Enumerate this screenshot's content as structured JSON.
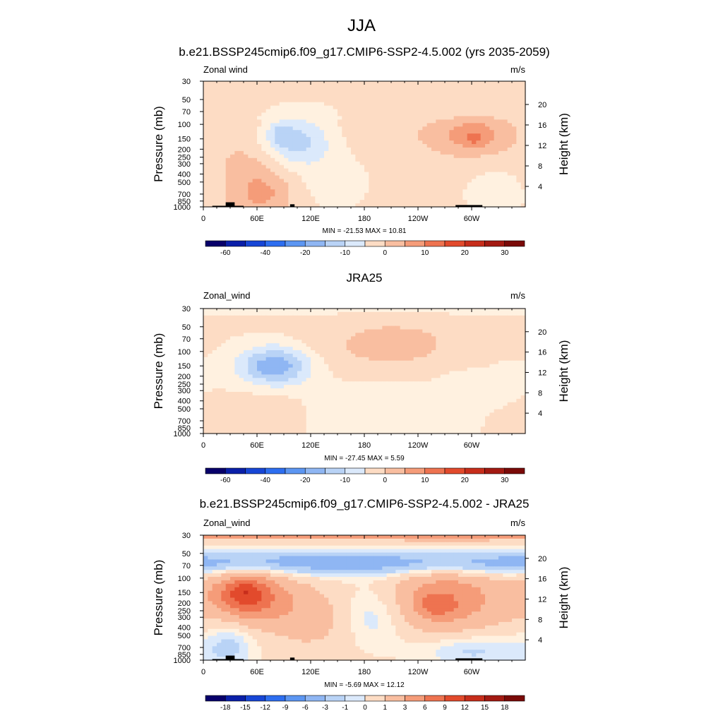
{
  "figure_title": "JJA",
  "colors": {
    "diverging_palette": [
      "#08006a",
      "#0a1fa8",
      "#1746d6",
      "#2d6ef0",
      "#5c96f2",
      "#8fb6f3",
      "#b9d3f6",
      "#dbe9fb",
      "#fff1e0",
      "#fddcc4",
      "#f9bea0",
      "#f59c79",
      "#ee7350",
      "#e24a2c",
      "#c72d1b",
      "#a31a12",
      "#7a0a08"
    ],
    "topography": "#000000"
  },
  "chart_data": [
    {
      "type": "heatmap",
      "panel": "model",
      "title": "b.e21.BSSP245cmip6.f09_g17.CMIP6-SSP2-4.5.002 (yrs 2035-2059)",
      "corner_left": "Zonal wind",
      "corner_right": "m/s",
      "xlabel": "",
      "ylabel": "Pressure (mb)",
      "ylabel_right": "Height (km)",
      "x_ticks": [
        "0",
        "60E",
        "120E",
        "180",
        "120W",
        "60W"
      ],
      "x_tick_lon": [
        0,
        60,
        120,
        180,
        240,
        300
      ],
      "xlim": [
        0,
        360
      ],
      "y_ticks": [
        "30",
        "50",
        "70",
        "100",
        "150",
        "200",
        "250",
        "300",
        "400",
        "500",
        "700",
        "850",
        "1000"
      ],
      "y_tick_p": [
        30,
        50,
        70,
        100,
        150,
        200,
        250,
        300,
        400,
        500,
        700,
        850,
        1000
      ],
      "ylim_mb": [
        1000,
        30
      ],
      "y_scale": "log",
      "height_ticks": [
        "4",
        "8",
        "12",
        "16",
        "20"
      ],
      "height_tick_km": [
        4,
        8,
        12,
        16,
        20
      ],
      "minmax_label": "MIN = -21.53  MAX =  10.81",
      "min": -21.53,
      "max": 10.81,
      "colorbar_labels": [
        "-60",
        "-40",
        "-20",
        "-10",
        "0",
        "10",
        "20",
        "30"
      ],
      "colorbar_label_box": [
        1,
        3,
        5,
        7,
        9,
        11,
        13,
        15
      ],
      "features": [
        {
          "kind": "blob",
          "lon": 100,
          "p": 160,
          "rl": 40,
          "rp": 0.7,
          "value": -15
        },
        {
          "kind": "blob",
          "lon": 85,
          "p": 130,
          "rl": 12,
          "rp": 0.3,
          "value": -6
        },
        {
          "kind": "blob",
          "lon": 140,
          "p": 500,
          "rl": 55,
          "rp": 1.0,
          "value": -4
        },
        {
          "kind": "blob",
          "lon": 240,
          "p": 90,
          "rl": 80,
          "rp": 0.9,
          "value": -4
        },
        {
          "kind": "blob",
          "lon": 300,
          "p": 130,
          "rl": 45,
          "rp": 0.6,
          "value": 12
        },
        {
          "kind": "blob",
          "lon": 305,
          "p": 150,
          "rl": 12,
          "rp": 0.18,
          "value": 5
        },
        {
          "kind": "blob",
          "lon": 220,
          "p": 110,
          "rl": 60,
          "rp": 0.8,
          "value": 5
        },
        {
          "kind": "blob",
          "lon": 60,
          "p": 450,
          "rl": 45,
          "rp": 1.4,
          "value": 7
        },
        {
          "kind": "blob",
          "lon": 70,
          "p": 700,
          "rl": 30,
          "rp": 0.5,
          "value": 4
        },
        {
          "kind": "blob",
          "lon": 330,
          "p": 700,
          "rl": 40,
          "rp": 0.7,
          "value": -5
        }
      ],
      "base": {
        "value": 2,
        "top_p": 70,
        "top_value": 1
      }
    },
    {
      "type": "heatmap",
      "panel": "obs",
      "title": "JRA25",
      "corner_left": "Zonal_wind",
      "corner_right": "m/s",
      "xlabel": "",
      "ylabel": "Pressure (mb)",
      "ylabel_right": "Height (km)",
      "x_ticks": [
        "0",
        "60E",
        "120E",
        "180",
        "120W",
        "60W"
      ],
      "x_tick_lon": [
        0,
        60,
        120,
        180,
        240,
        300
      ],
      "xlim": [
        0,
        360
      ],
      "y_ticks": [
        "30",
        "50",
        "70",
        "100",
        "150",
        "200",
        "250",
        "300",
        "400",
        "500",
        "700",
        "850",
        "1000"
      ],
      "y_tick_p": [
        30,
        50,
        70,
        100,
        150,
        200,
        250,
        300,
        400,
        500,
        700,
        850,
        1000
      ],
      "ylim_mb": [
        1000,
        30
      ],
      "y_scale": "log",
      "height_ticks": [
        "4",
        "8",
        "12",
        "16",
        "20"
      ],
      "height_tick_km": [
        4,
        8,
        12,
        16,
        20
      ],
      "minmax_label": "MIN = -27.45  MAX =   5.59",
      "min": -27.45,
      "max": 5.59,
      "colorbar_labels": [
        "-60",
        "-40",
        "-20",
        "-10",
        "0",
        "10",
        "20",
        "30"
      ],
      "colorbar_label_box": [
        1,
        3,
        5,
        7,
        9,
        11,
        13,
        15
      ],
      "features": [
        {
          "kind": "blob",
          "lon": 80,
          "p": 150,
          "rl": 40,
          "rp": 0.55,
          "value": -20
        },
        {
          "kind": "blob",
          "lon": 210,
          "p": 90,
          "rl": 90,
          "rp": 0.9,
          "value": 7
        },
        {
          "kind": "blob",
          "lon": 300,
          "p": 130,
          "rl": 20,
          "rp": 0.2,
          "value": 3
        },
        {
          "kind": "blob",
          "lon": 200,
          "p": 500,
          "rl": 80,
          "rp": 1.3,
          "value": -4
        },
        {
          "kind": "blob",
          "lon": 310,
          "p": 200,
          "rl": 50,
          "rp": 0.6,
          "value": -3
        },
        {
          "kind": "blob",
          "lon": 70,
          "p": 600,
          "rl": 40,
          "rp": 0.8,
          "value": 3
        },
        {
          "kind": "blob",
          "lon": 180,
          "p": 30,
          "rl": 400,
          "rp": 0.15,
          "value": -5
        }
      ],
      "base": {
        "value": 0.5,
        "top_p": 30,
        "top_value": 0.5
      }
    },
    {
      "type": "heatmap",
      "panel": "difference",
      "title": "b.e21.BSSP245cmip6.f09_g17.CMIP6-SSP2-4.5.002 - JRA25",
      "corner_left": "Zonal_wind",
      "corner_right": "m/s",
      "xlabel": "",
      "ylabel": "Pressure (mb)",
      "ylabel_right": "Height (km)",
      "x_ticks": [
        "0",
        "60E",
        "120E",
        "180",
        "120W",
        "60W"
      ],
      "x_tick_lon": [
        0,
        60,
        120,
        180,
        240,
        300
      ],
      "xlim": [
        0,
        360
      ],
      "y_ticks": [
        "30",
        "50",
        "70",
        "100",
        "150",
        "200",
        "250",
        "300",
        "400",
        "500",
        "700",
        "850",
        "1000"
      ],
      "y_tick_p": [
        30,
        50,
        70,
        100,
        150,
        200,
        250,
        300,
        400,
        500,
        700,
        850,
        1000
      ],
      "ylim_mb": [
        1000,
        30
      ],
      "y_scale": "log",
      "height_ticks": [
        "4",
        "8",
        "12",
        "16",
        "20"
      ],
      "height_tick_km": [
        4,
        8,
        12,
        16,
        20
      ],
      "minmax_label": "MIN =  -5.69  MAX =  12.12",
      "min": -5.69,
      "max": 12.12,
      "colorbar_labels": [
        "-18",
        "-15",
        "-12",
        "-9",
        "-6",
        "-3",
        "-1",
        "0",
        "1",
        "3",
        "6",
        "9",
        "12",
        "15",
        "18"
      ],
      "colorbar_label_box": [
        1,
        2,
        3,
        4,
        5,
        6,
        7,
        8,
        9,
        10,
        11,
        12,
        13,
        14,
        15
      ],
      "features": [
        {
          "kind": "band",
          "p": 30,
          "rp": 0.15,
          "value": 8
        },
        {
          "kind": "band",
          "p": 65,
          "rp": 0.35,
          "value": -6
        },
        {
          "kind": "blob",
          "lon": 50,
          "p": 170,
          "rl": 45,
          "rp": 0.75,
          "value": 10
        },
        {
          "kind": "blob",
          "lon": 45,
          "p": 150,
          "rl": 20,
          "rp": 0.35,
          "value": 4
        },
        {
          "kind": "blob",
          "lon": 270,
          "p": 180,
          "rl": 65,
          "rp": 0.9,
          "value": 7
        },
        {
          "kind": "blob",
          "lon": 260,
          "p": 220,
          "rl": 20,
          "rp": 0.3,
          "value": 4
        },
        {
          "kind": "blob",
          "lon": 195,
          "p": 260,
          "rl": 40,
          "rp": 0.9,
          "value": -3
        },
        {
          "kind": "blob",
          "lon": 120,
          "p": 300,
          "rl": 40,
          "rp": 0.8,
          "value": 3
        },
        {
          "kind": "blob",
          "lon": 30,
          "p": 600,
          "rl": 30,
          "rp": 0.9,
          "value": -3
        },
        {
          "kind": "blob",
          "lon": 300,
          "p": 750,
          "rl": 60,
          "rp": 0.5,
          "value": -3
        }
      ],
      "base": {
        "value": 1.5,
        "top_p": 30,
        "top_value": 0
      }
    }
  ],
  "colorbar_levels": {
    "full_field": [
      -60,
      -50,
      -40,
      -30,
      -20,
      -15,
      -10,
      -5,
      0,
      5,
      10,
      15,
      20,
      25,
      30,
      40
    ],
    "difference": [
      -18,
      -15,
      -12,
      -9,
      -6,
      -3,
      -1,
      0,
      1,
      3,
      6,
      9,
      12,
      15,
      18
    ]
  }
}
